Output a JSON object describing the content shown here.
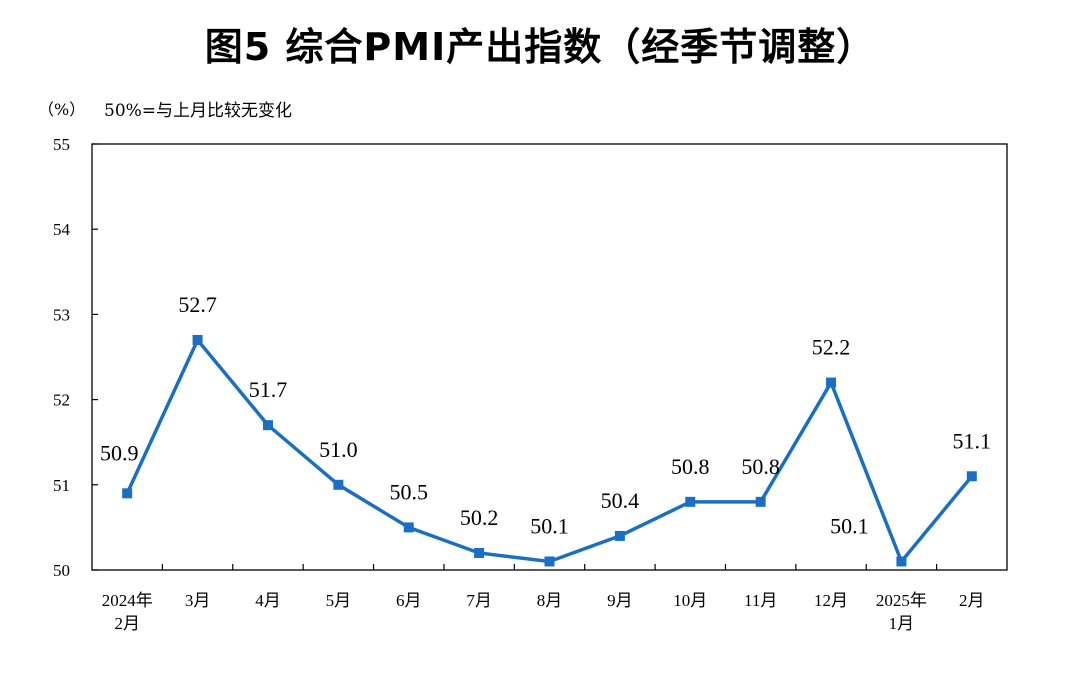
{
  "page": {
    "title": "图5  综合PMI产出指数（经季节调整）",
    "unit": "（%）",
    "note": "50%=与上月比较无变化"
  },
  "chart_data": {
    "type": "line",
    "title": "图5  综合PMI产出指数（经季节调整）",
    "xlabel": "",
    "ylabel": "（%）",
    "ylim": [
      50,
      55
    ],
    "yticks": [
      50,
      51,
      52,
      53,
      54,
      55
    ],
    "categories": [
      "2024年2月",
      "3月",
      "4月",
      "5月",
      "6月",
      "7月",
      "8月",
      "9月",
      "10月",
      "11月",
      "12月",
      "2025年1月",
      "2月"
    ],
    "category_lines": [
      [
        "2024年",
        "2月"
      ],
      [
        "3月"
      ],
      [
        "4月"
      ],
      [
        "5月"
      ],
      [
        "6月"
      ],
      [
        "7月"
      ],
      [
        "8月"
      ],
      [
        "9月"
      ],
      [
        "10月"
      ],
      [
        "11月"
      ],
      [
        "12月"
      ],
      [
        "2025年",
        "1月"
      ],
      [
        "2月"
      ]
    ],
    "series": [
      {
        "values": [
          50.9,
          52.7,
          51.7,
          51.0,
          50.5,
          50.2,
          50.1,
          50.4,
          50.8,
          50.8,
          52.2,
          50.1,
          51.1
        ],
        "labels": [
          "50.9",
          "52.7",
          "51.7",
          "51.0",
          "50.5",
          "50.2",
          "50.1",
          "50.4",
          "50.8",
          "50.8",
          "52.2",
          "50.1",
          "51.1"
        ],
        "color": "#1a6fc4",
        "marker": "square"
      }
    ],
    "grid": false,
    "legend": "none"
  }
}
